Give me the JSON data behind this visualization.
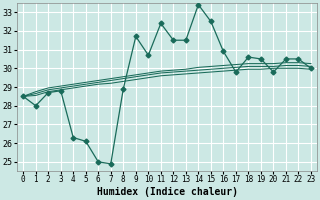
{
  "title": "",
  "xlabel": "Humidex (Indice chaleur)",
  "ylabel": "",
  "background_color": "#cce8e4",
  "grid_color": "#ffffff",
  "line_color": "#1a6b5a",
  "xlim": [
    -0.5,
    23.5
  ],
  "ylim": [
    24.5,
    33.5
  ],
  "yticks": [
    25,
    26,
    27,
    28,
    29,
    30,
    31,
    32,
    33
  ],
  "xticks": [
    0,
    1,
    2,
    3,
    4,
    5,
    6,
    7,
    8,
    9,
    10,
    11,
    12,
    13,
    14,
    15,
    16,
    17,
    18,
    19,
    20,
    21,
    22,
    23
  ],
  "main_line_y": [
    28.5,
    28.0,
    28.7,
    28.8,
    26.3,
    26.1,
    25.0,
    24.9,
    28.9,
    31.7,
    30.7,
    32.4,
    31.5,
    31.5,
    33.4,
    32.5,
    30.9,
    29.8,
    30.6,
    30.5,
    29.8,
    30.5,
    30.5,
    30.0
  ],
  "smooth_lines": [
    [
      28.5,
      28.55,
      28.75,
      28.85,
      28.95,
      29.05,
      29.15,
      29.2,
      29.3,
      29.4,
      29.5,
      29.6,
      29.65,
      29.7,
      29.75,
      29.8,
      29.85,
      29.9,
      29.95,
      29.95,
      30.0,
      30.0,
      30.0,
      29.95
    ],
    [
      28.5,
      28.65,
      28.85,
      28.95,
      29.05,
      29.15,
      29.25,
      29.35,
      29.45,
      29.55,
      29.65,
      29.75,
      29.8,
      29.85,
      29.9,
      29.95,
      30.0,
      30.05,
      30.1,
      30.1,
      30.1,
      30.15,
      30.15,
      30.1
    ],
    [
      28.5,
      28.75,
      28.95,
      29.05,
      29.15,
      29.25,
      29.35,
      29.45,
      29.55,
      29.65,
      29.75,
      29.85,
      29.9,
      29.95,
      30.05,
      30.1,
      30.15,
      30.2,
      30.25,
      30.25,
      30.25,
      30.3,
      30.3,
      30.25
    ]
  ],
  "marker": "D",
  "markersize": 2.5,
  "linewidth": 0.9,
  "smooth_linewidth": 0.75,
  "font_family": "monospace",
  "xlabel_fontsize": 7,
  "tick_fontsize": 6,
  "xtick_fontsize": 5.5
}
